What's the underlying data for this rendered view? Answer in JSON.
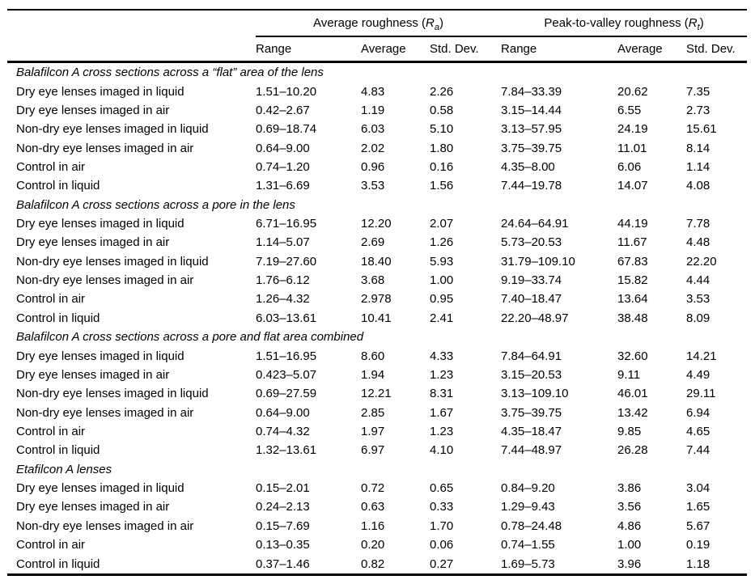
{
  "page": {
    "background_color": "#ffffff",
    "text_color": "#000000"
  },
  "table": {
    "column_groups": [
      {
        "prefix": "Average roughness (",
        "symbol": "R",
        "subscript": "a",
        "suffix": ")"
      },
      {
        "prefix": "Peak-to-valley roughness (",
        "symbol": "R",
        "subscript": "t",
        "suffix": ")"
      }
    ],
    "sub_headers": [
      "Range",
      "Average",
      "Std. Dev.",
      "Range",
      "Average",
      "Std. Dev."
    ],
    "sections": [
      {
        "title": "Balafilcon A cross sections across a “flat” area of the lens",
        "rows": [
          {
            "label": "Dry eye lenses imaged in liquid",
            "values": [
              "1.51–10.20",
              "4.83",
              "2.26",
              "7.84–33.39",
              "20.62",
              "7.35"
            ]
          },
          {
            "label": "Dry eye lenses imaged in air",
            "values": [
              "0.42–2.67",
              "1.19",
              "0.58",
              "3.15–14.44",
              "6.55",
              "2.73"
            ]
          },
          {
            "label": "Non-dry eye lenses imaged in liquid",
            "values": [
              "0.69–18.74",
              "6.03",
              "5.10",
              "3.13–57.95",
              "24.19",
              "15.61"
            ]
          },
          {
            "label": "Non-dry eye lenses imaged in air",
            "values": [
              "0.64–9.00",
              "2.02",
              "1.80",
              "3.75–39.75",
              "11.01",
              "8.14"
            ]
          },
          {
            "label": "Control in air",
            "values": [
              "0.74–1.20",
              "0.96",
              "0.16",
              "4.35–8.00",
              "6.06",
              "1.14"
            ]
          },
          {
            "label": "Control in liquid",
            "values": [
              "1.31–6.69",
              "3.53",
              "1.56",
              "7.44–19.78",
              "14.07",
              "4.08"
            ]
          }
        ]
      },
      {
        "title": "Balafilcon A cross sections across a pore in the lens",
        "rows": [
          {
            "label": "Dry eye lenses imaged in liquid",
            "values": [
              "6.71–16.95",
              "12.20",
              "2.07",
              "24.64–64.91",
              "44.19",
              "7.78"
            ]
          },
          {
            "label": "Dry eye lenses imaged in air",
            "values": [
              "1.14–5.07",
              "2.69",
              "1.26",
              "5.73–20.53",
              "11.67",
              "4.48"
            ]
          },
          {
            "label": "Non-dry eye lenses imaged in liquid",
            "values": [
              "7.19–27.60",
              "18.40",
              "5.93",
              "31.79–109.10",
              "67.83",
              "22.20"
            ]
          },
          {
            "label": "Non-dry eye lenses imaged in air",
            "values": [
              "1.76–6.12",
              "3.68",
              "1.00",
              "9.19–33.74",
              "15.82",
              "4.44"
            ]
          },
          {
            "label": "Control in air",
            "values": [
              "1.26–4.32",
              "2.978",
              "0.95",
              "7.40–18.47",
              "13.64",
              "3.53"
            ]
          },
          {
            "label": "Control in liquid",
            "values": [
              "6.03–13.61",
              "10.41",
              "2.41",
              "22.20–48.97",
              "38.48",
              "8.09"
            ]
          }
        ]
      },
      {
        "title": "Balafilcon A cross sections across a pore and flat area combined",
        "rows": [
          {
            "label": "Dry eye lenses imaged in liquid",
            "values": [
              "1.51–16.95",
              "8.60",
              "4.33",
              "7.84–64.91",
              "32.60",
              "14.21"
            ]
          },
          {
            "label": "Dry eye lenses imaged in air",
            "values": [
              "0.423–5.07",
              "1.94",
              "1.23",
              "3.15–20.53",
              "9.11",
              "4.49"
            ]
          },
          {
            "label": "Non-dry eye lenses imaged in liquid",
            "values": [
              "0.69–27.59",
              "12.21",
              "8.31",
              "3.13–109.10",
              "46.01",
              "29.11"
            ]
          },
          {
            "label": "Non-dry eye lenses imaged in air",
            "values": [
              "0.64–9.00",
              "2.85",
              "1.67",
              "3.75–39.75",
              "13.42",
              "6.94"
            ]
          },
          {
            "label": "Control in air",
            "values": [
              "0.74–4.32",
              "1.97",
              "1.23",
              "4.35–18.47",
              "9.85",
              "4.65"
            ]
          },
          {
            "label": "Control in liquid",
            "values": [
              "1.32–13.61",
              "6.97",
              "4.10",
              "7.44–48.97",
              "26.28",
              "7.44"
            ]
          }
        ]
      },
      {
        "title": "Etafilcon A lenses",
        "rows": [
          {
            "label": "Dry eye lenses imaged in liquid",
            "values": [
              "0.15–2.01",
              "0.72",
              "0.65",
              "0.84–9.20",
              "3.86",
              "3.04"
            ]
          },
          {
            "label": "Dry eye lenses imaged in air",
            "values": [
              "0.24–2.13",
              "0.63",
              "0.33",
              "1.29–9.43",
              "3.56",
              "1.65"
            ]
          },
          {
            "label": "Non-dry eye lenses imaged in air",
            "values": [
              "0.15–7.69",
              "1.16",
              "1.70",
              "0.78–24.48",
              "4.86",
              "5.67"
            ]
          },
          {
            "label": "Control in air",
            "values": [
              "0.13–0.35",
              "0.20",
              "0.06",
              "0.74–1.55",
              "1.00",
              "0.19"
            ]
          },
          {
            "label": "Control in liquid",
            "values": [
              "0.37–1.46",
              "0.82",
              "0.27",
              "1.69–5.73",
              "3.96",
              "1.18"
            ]
          }
        ]
      }
    ]
  }
}
